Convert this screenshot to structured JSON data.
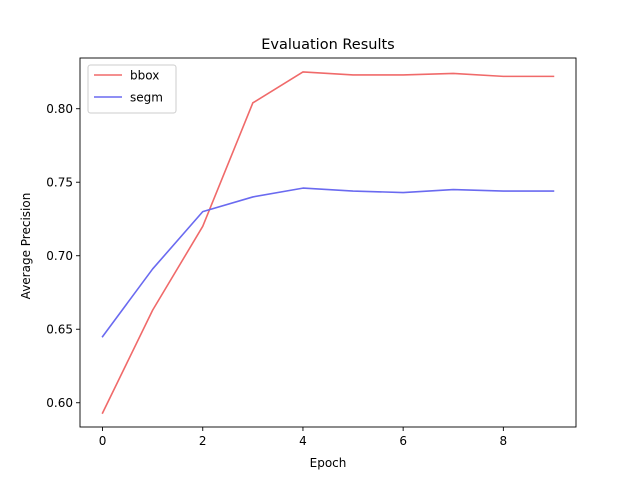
{
  "chart_data": {
    "type": "line",
    "title": "Evaluation Results",
    "xlabel": "Epoch",
    "ylabel": "Average Precision",
    "x": [
      0,
      1,
      2,
      3,
      4,
      5,
      6,
      7,
      8,
      9
    ],
    "xlim": [
      -0.45,
      9.45
    ],
    "ylim": [
      0.5835,
      0.8345
    ],
    "x_ticks": [
      0,
      2,
      4,
      6,
      8
    ],
    "y_ticks": [
      0.6,
      0.65,
      0.7,
      0.75,
      0.8
    ],
    "x_tick_labels": [
      "0",
      "2",
      "4",
      "6",
      "8"
    ],
    "y_tick_labels": [
      "0.60",
      "0.65",
      "0.70",
      "0.75",
      "0.80"
    ],
    "grid": false,
    "legend_position": "top-left",
    "series": [
      {
        "name": "bbox",
        "color": "#f06a6a",
        "values": [
          0.593,
          0.663,
          0.72,
          0.804,
          0.825,
          0.823,
          0.823,
          0.824,
          0.822,
          0.822
        ]
      },
      {
        "name": "segm",
        "color": "#6a6af0",
        "values": [
          0.645,
          0.691,
          0.73,
          0.74,
          0.746,
          0.744,
          0.743,
          0.745,
          0.744,
          0.744
        ]
      }
    ]
  }
}
